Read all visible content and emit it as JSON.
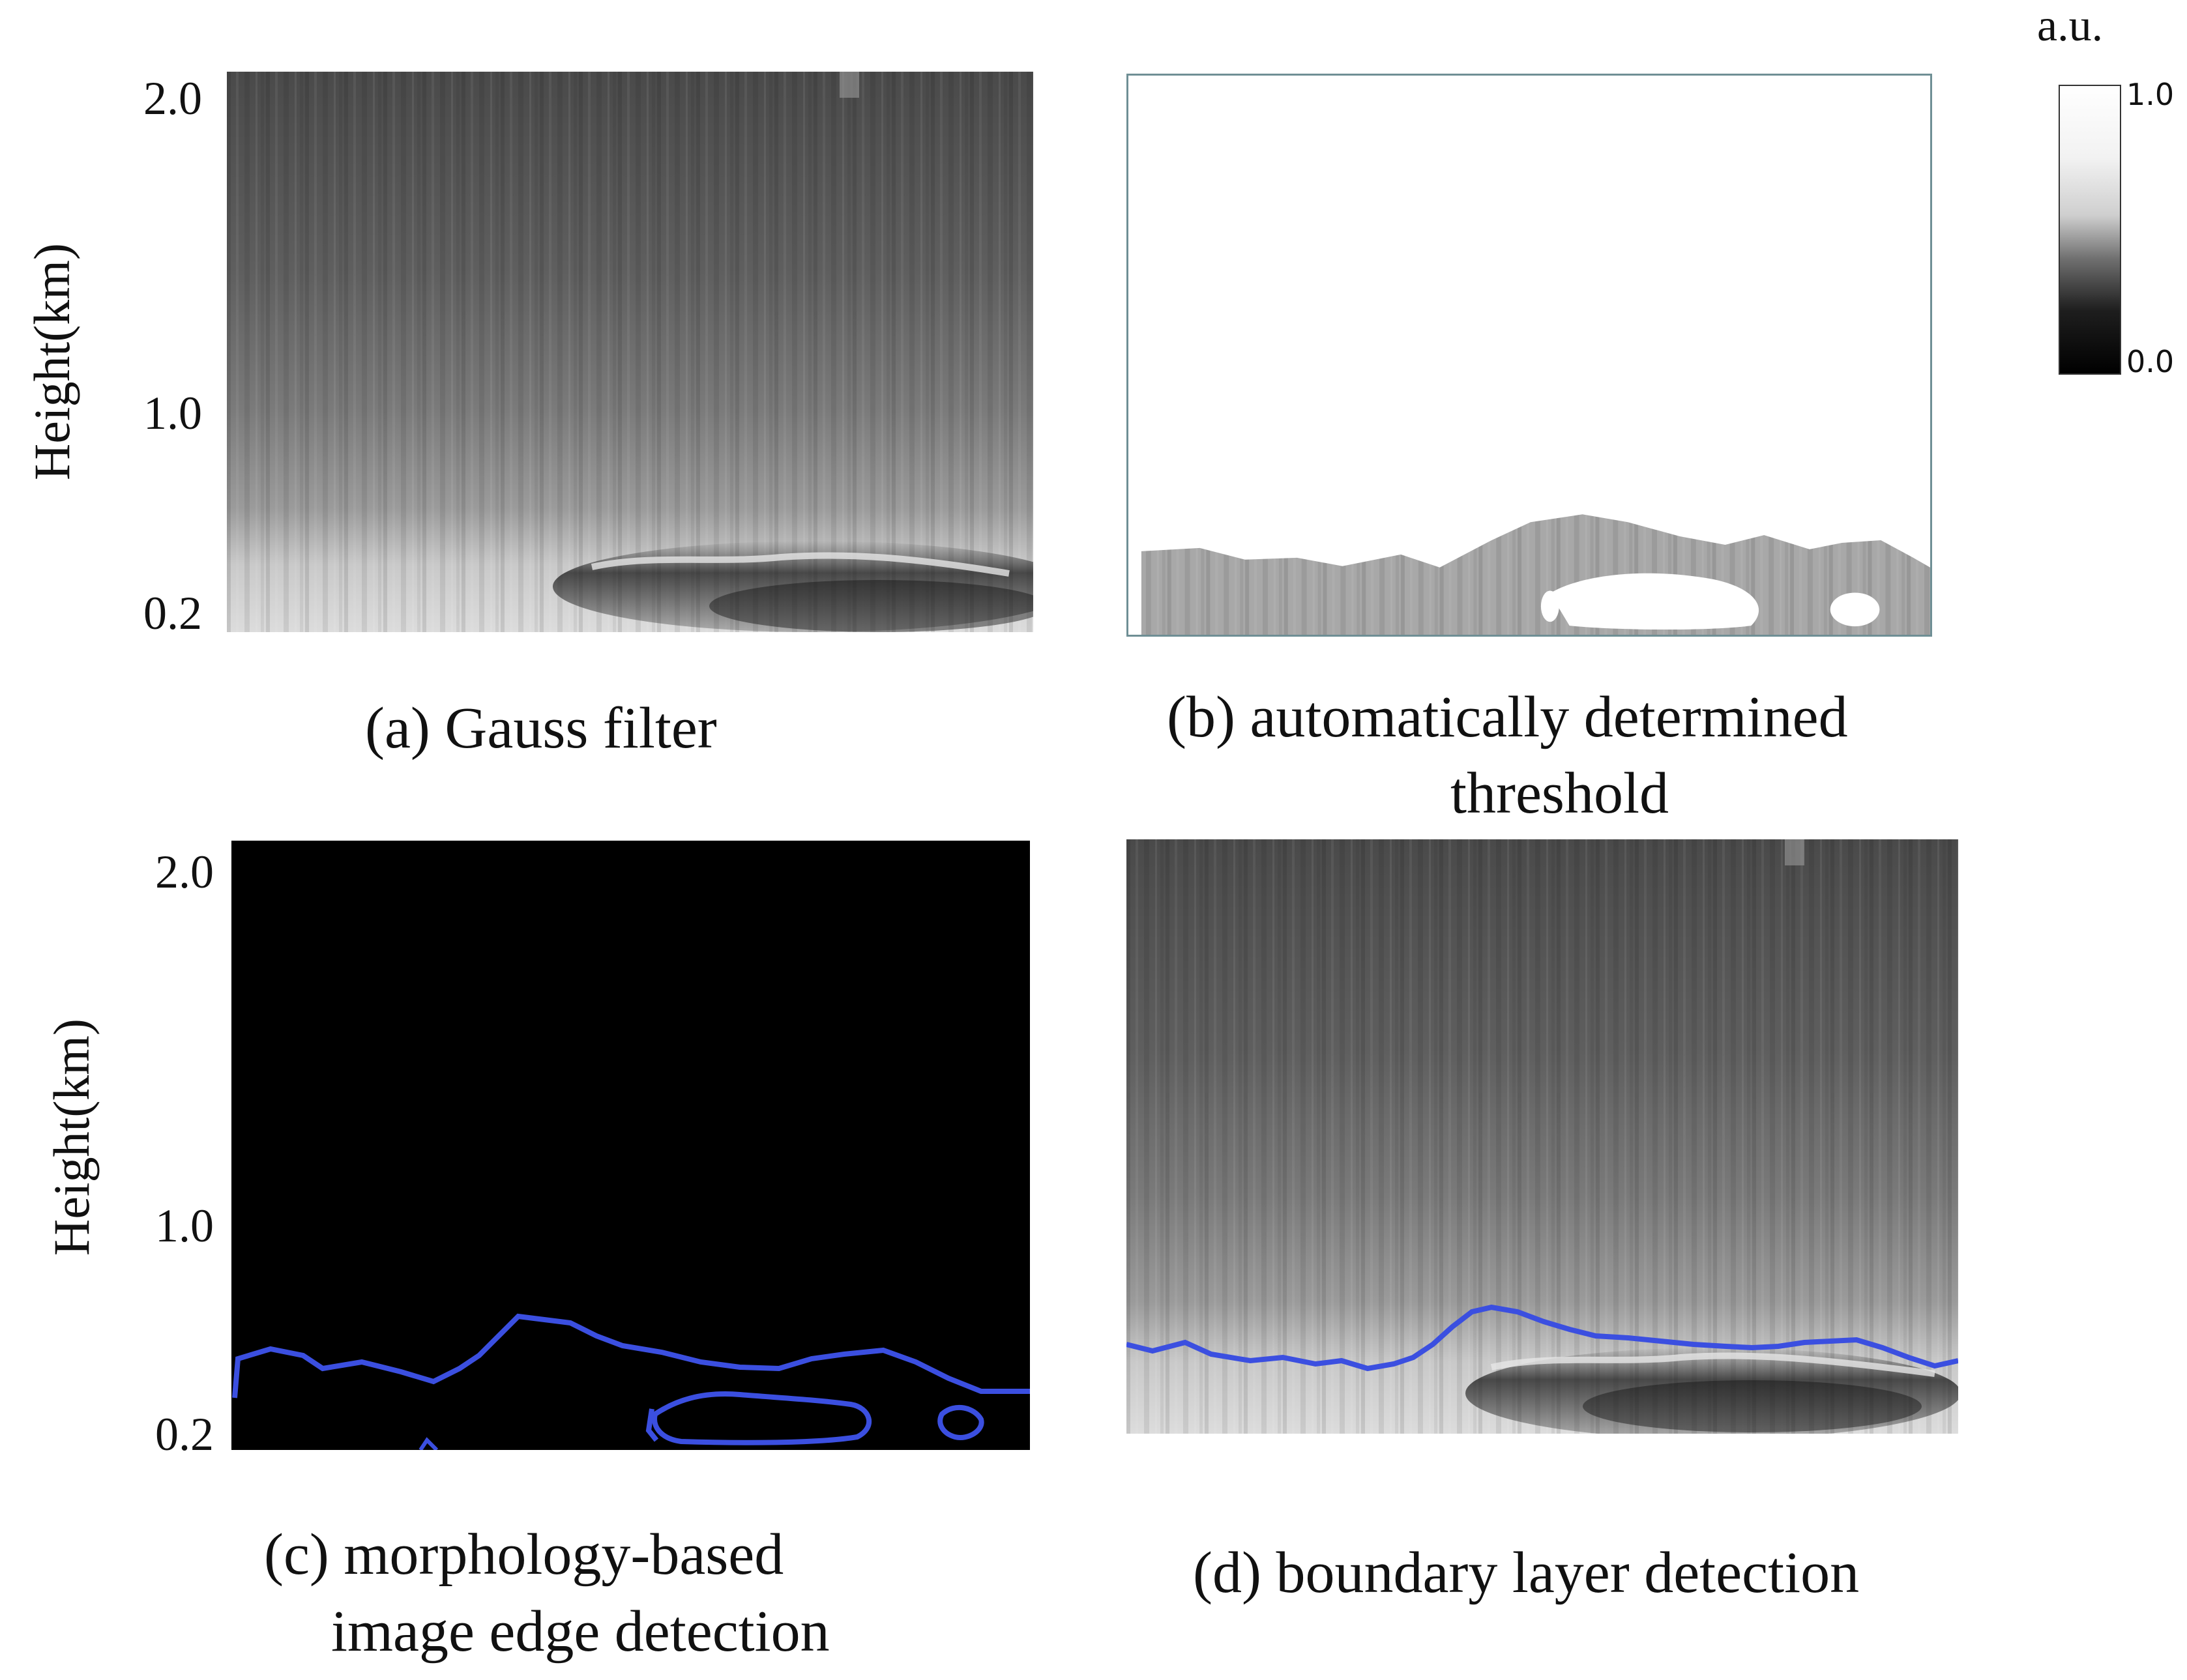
{
  "y_axis": {
    "label": "Height(km)",
    "ticks": [
      "2.0",
      "1.0",
      "0.2"
    ]
  },
  "colorbar": {
    "unit": "a.u.",
    "max_label": "1.0",
    "min_label": "0.0"
  },
  "panels": {
    "a": {
      "caption": "(a) Gauss filter"
    },
    "b": {
      "caption_line1": "(b) automatically determined",
      "caption_line2": "threshold"
    },
    "c": {
      "caption_line1": "(c)  morphology-based",
      "caption_line2": "image edge detection"
    },
    "d": {
      "caption": "(d) boundary layer detection"
    }
  },
  "colors": {
    "boundary_line": "#3b4fe0",
    "background_c": "#000000",
    "frame_b": "#6f8f95"
  }
}
